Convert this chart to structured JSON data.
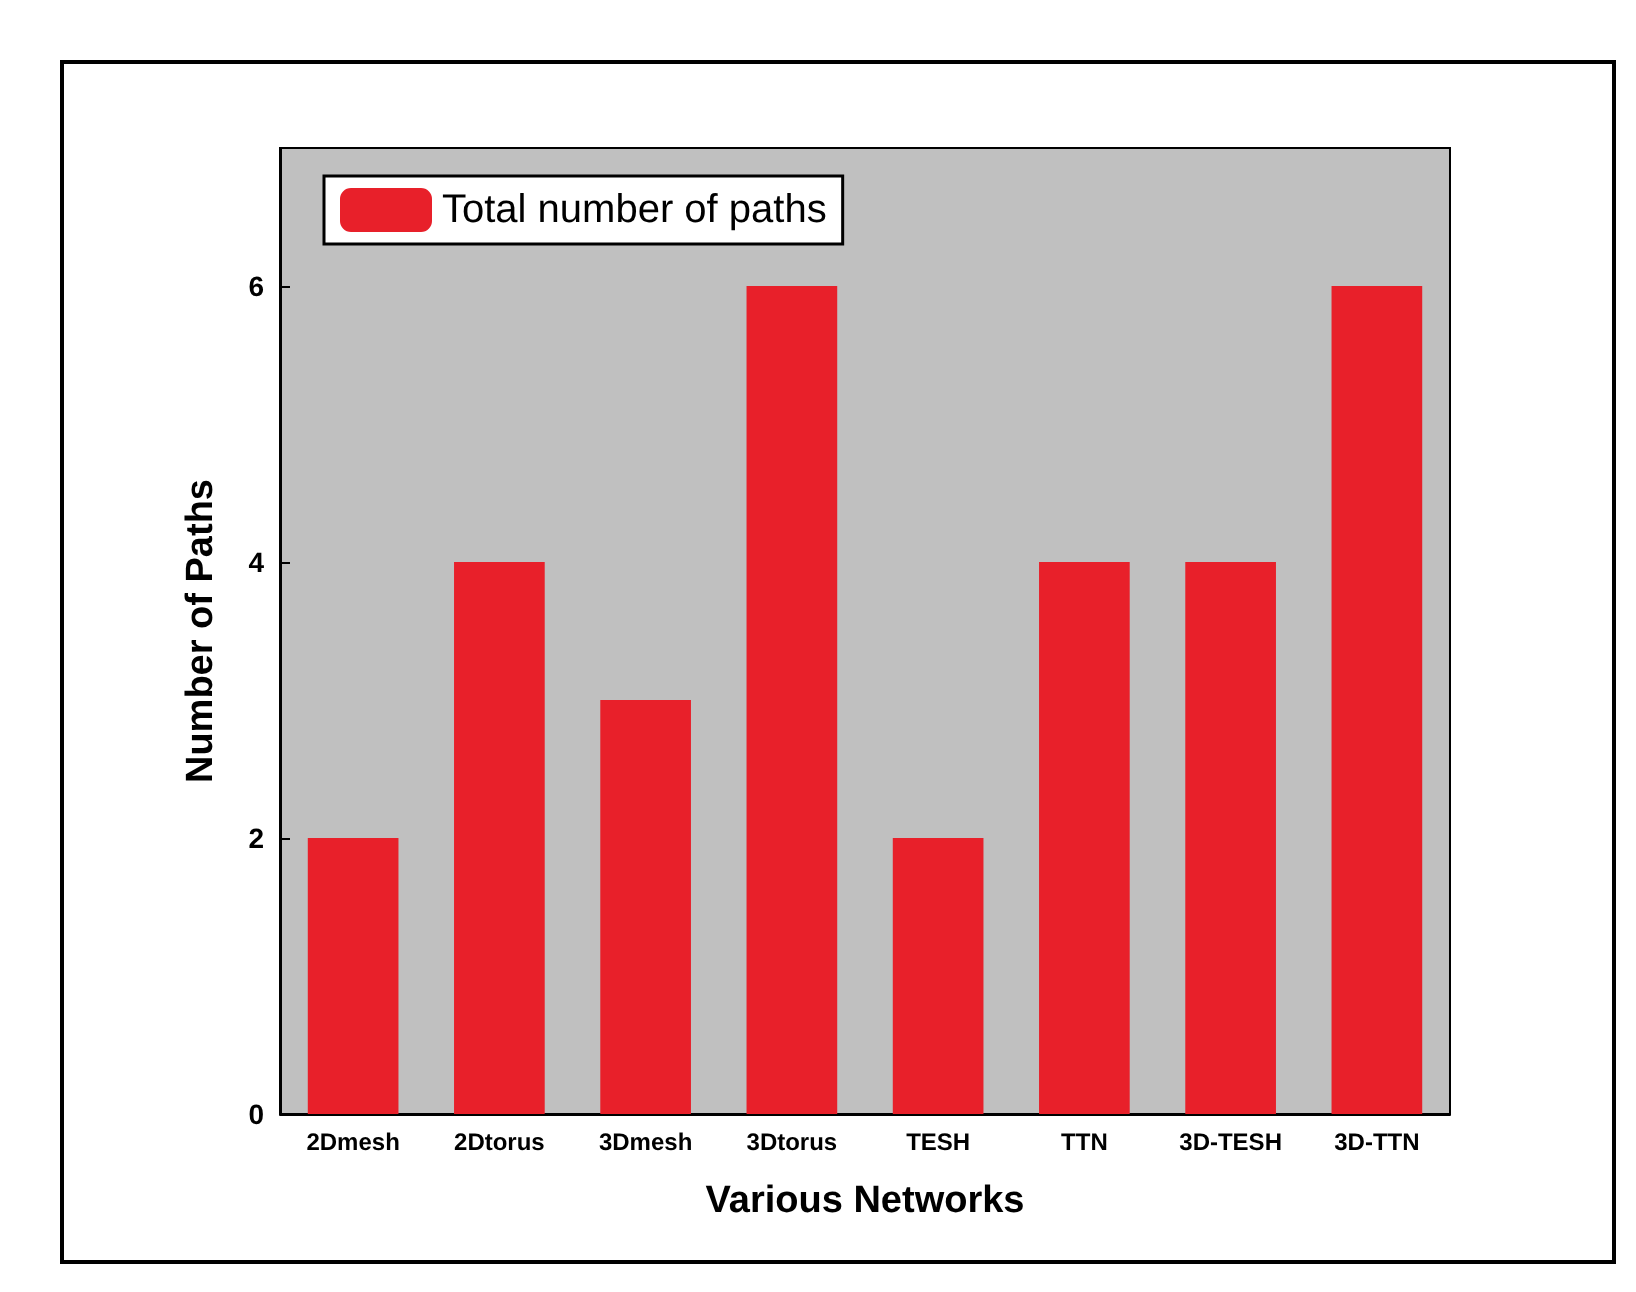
{
  "chart_data": {
    "type": "bar",
    "xlabel": "Various Networks",
    "ylabel": "Number of Paths",
    "categories": [
      "2Dmesh",
      "2Dtorus",
      "3Dmesh",
      "3Dtorus",
      "TESH",
      "TTN",
      "3D-TESH",
      "3D-TTN"
    ],
    "series": [
      {
        "name": "Total number of paths",
        "color": "#e8202a",
        "values": [
          2,
          4,
          3,
          6,
          2,
          4,
          4,
          6
        ]
      }
    ],
    "ylim": [
      0,
      7
    ],
    "yticks": [
      0,
      2,
      4,
      6
    ],
    "grid": false,
    "legend": "top left"
  }
}
